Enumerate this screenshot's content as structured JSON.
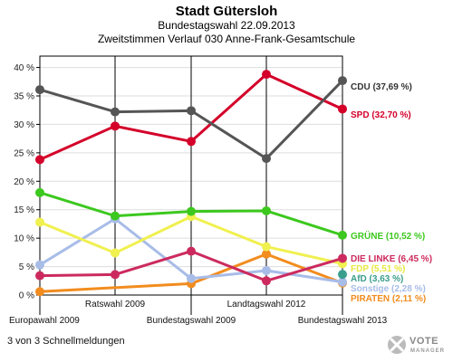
{
  "chart_data": {
    "type": "line",
    "title": "Stadt Gütersloh",
    "subtitle": "Bundestagswahl 22.09.2013",
    "subtitle2": "Zweitstimmen Verlauf 030 Anne-Frank-Gesamtschule",
    "x": [
      "Europawahl 2009",
      "Ratswahl 2009",
      "Bundestagswahl 2009",
      "Landtagswahl 2012",
      "Bundestagswahl 2013"
    ],
    "x_label_rows": [
      "bottom",
      "top",
      "bottom",
      "top",
      "bottom"
    ],
    "ylim": [
      0,
      42
    ],
    "yticks": [
      0,
      5,
      10,
      15,
      20,
      25,
      30,
      35,
      40
    ],
    "ytick_labels": [
      "0 %",
      "5 %",
      "10 %",
      "15 %",
      "20 %",
      "25 %",
      "30 %",
      "35 %",
      "40 %"
    ],
    "series": [
      {
        "name": "CDU",
        "color": "#555555",
        "values": [
          36.1,
          32.2,
          32.4,
          24.0,
          37.69
        ],
        "end_label": "CDU (37,69 %)",
        "label_color": "#333333"
      },
      {
        "name": "SPD",
        "color": "#d4002a",
        "values": [
          23.8,
          29.7,
          27.0,
          38.8,
          32.7
        ],
        "end_label": "SPD (32,70 %)",
        "label_color": "#d4002a"
      },
      {
        "name": "GRÜNE",
        "color": "#3cc81e",
        "values": [
          18.0,
          13.9,
          14.7,
          14.8,
          10.52
        ],
        "end_label": "GRÜNE (10,52 %)",
        "label_color": "#3cc81e"
      },
      {
        "name": "DIE LINKE",
        "color": "#cc2a5e",
        "values": [
          3.4,
          3.6,
          7.7,
          2.5,
          6.45
        ],
        "end_label": "DIE LINKE (6,45 %)",
        "label_color": "#cc2a5e"
      },
      {
        "name": "FDP",
        "color": "#f0f050",
        "values": [
          12.8,
          7.4,
          13.8,
          8.5,
          5.51
        ],
        "end_label": "FDP (5,51 %)",
        "label_color": "#e8e840"
      },
      {
        "name": "AfD",
        "color": "#3a9e8c",
        "values": [
          null,
          null,
          null,
          null,
          3.63
        ],
        "end_label": "AfD (3,63 %)",
        "label_color": "#3a9e8c"
      },
      {
        "name": "Sonstige",
        "color": "#a8bce8",
        "values": [
          5.3,
          13.4,
          2.9,
          4.3,
          2.28
        ],
        "end_label": "Sonstige (2,28 %)",
        "label_color": "#a8bce8"
      },
      {
        "name": "PIRATEN",
        "color": "#f28c1e",
        "values": [
          0.6,
          null,
          2.0,
          7.2,
          2.11
        ],
        "end_label": "PIRATEN (2,11 %)",
        "label_color": "#f28c1e"
      }
    ],
    "grid": true
  },
  "footer": {
    "text": "3 von 3 Schnellmeldungen"
  },
  "logo": {
    "line1": "VOTE",
    "line2": "MANAGER"
  }
}
